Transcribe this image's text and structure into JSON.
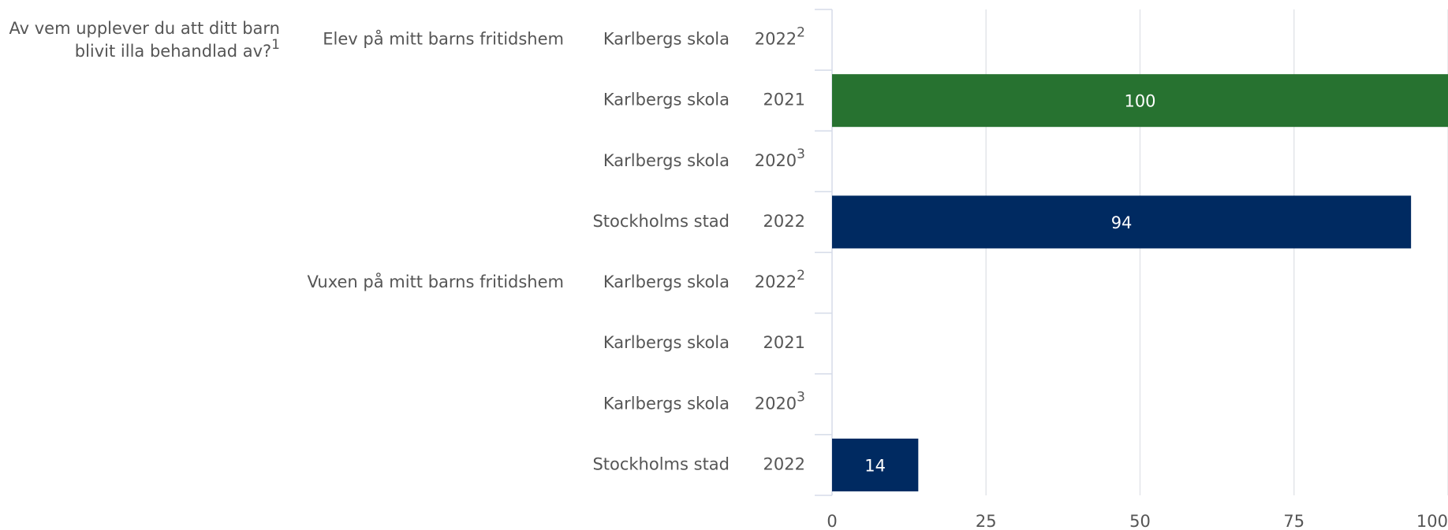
{
  "chart_data": {
    "type": "bar",
    "question": [
      "Av vem upplever du att ditt barn",
      "blivit illa behandlad av?"
    ],
    "question_note": "1",
    "rows": [
      {
        "group": "Elev på mitt barns fritidshem",
        "unit": "Karlbergs skola",
        "year": "2022",
        "note": "2",
        "value": null,
        "color": "#277230"
      },
      {
        "group": null,
        "unit": "Karlbergs skola",
        "year": "2021",
        "note": null,
        "value": 100,
        "color": "#277230"
      },
      {
        "group": null,
        "unit": "Karlbergs skola",
        "year": "2020",
        "note": "3",
        "value": null,
        "color": "#277230"
      },
      {
        "group": null,
        "unit": "Stockholms stad",
        "year": "2022",
        "note": null,
        "value": 94,
        "color": "#002a61"
      },
      {
        "group": "Vuxen på mitt barns fritidshem",
        "unit": "Karlbergs skola",
        "year": "2022",
        "note": "2",
        "value": null,
        "color": "#277230"
      },
      {
        "group": null,
        "unit": "Karlbergs skola",
        "year": "2021",
        "note": null,
        "value": null,
        "color": "#277230"
      },
      {
        "group": null,
        "unit": "Karlbergs skola",
        "year": "2020",
        "note": "3",
        "value": null,
        "color": "#277230"
      },
      {
        "group": null,
        "unit": "Stockholms stad",
        "year": "2022",
        "note": null,
        "value": 14,
        "color": "#002a61"
      }
    ],
    "xlim": [
      0,
      100
    ],
    "xticks": [
      0,
      25,
      50,
      75,
      100
    ],
    "grid": true
  }
}
